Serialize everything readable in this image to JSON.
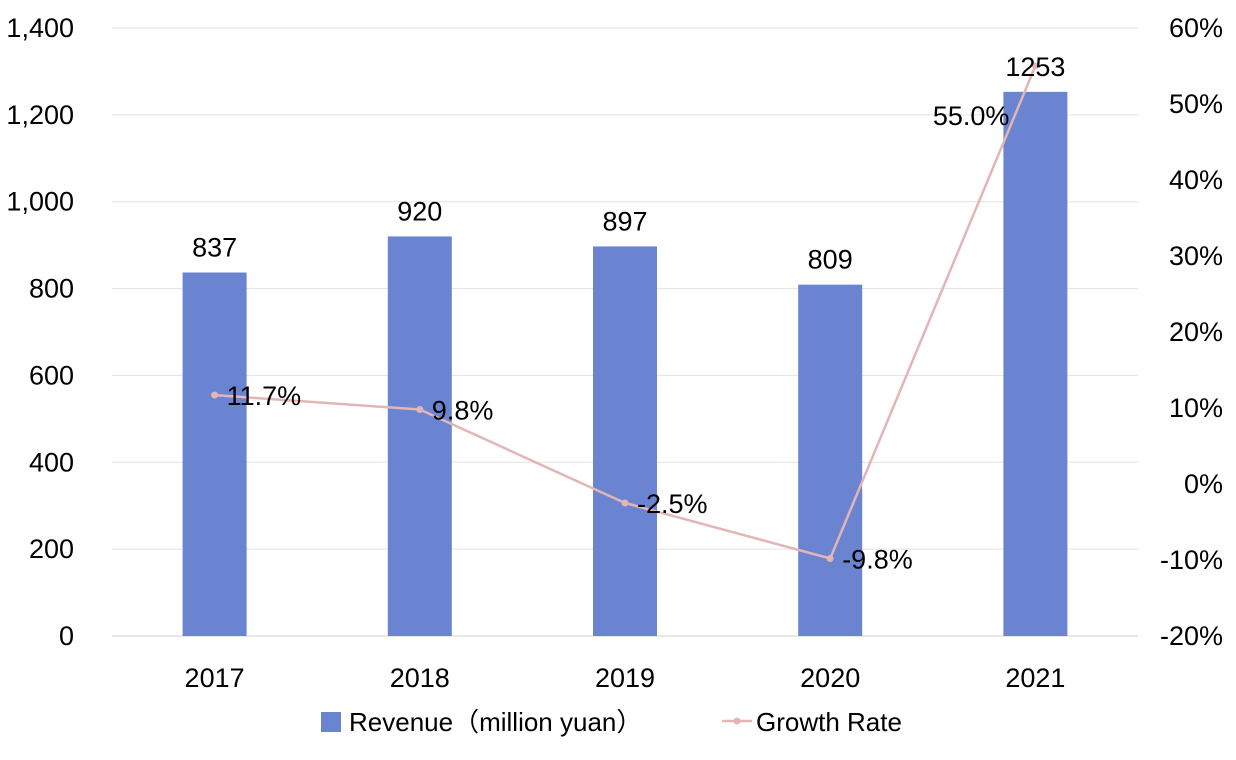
{
  "chart_data": {
    "type": "bar",
    "categories": [
      "2017",
      "2018",
      "2019",
      "2020",
      "2021"
    ],
    "series": [
      {
        "name": "Revenue（million yuan）",
        "type": "bar",
        "axis": "left",
        "values": [
          837,
          920,
          897,
          809,
          1253
        ],
        "labels": [
          "837",
          "920",
          "897",
          "809",
          "1253"
        ],
        "color": "#6A84D1"
      },
      {
        "name": "Growth Rate",
        "type": "line",
        "axis": "right",
        "values": [
          11.7,
          9.8,
          -2.5,
          -9.8,
          55.0
        ],
        "labels": [
          "11.7%",
          "9.8%",
          "-2.5%",
          "-9.8%",
          "55.0%"
        ],
        "color": "#E3B5B5"
      }
    ],
    "left_axis": {
      "ylim": [
        0,
        1400
      ],
      "ticks": [
        0,
        200,
        400,
        600,
        800,
        1000,
        1200,
        1400
      ],
      "tick_labels": [
        "0",
        "200",
        "400",
        "600",
        "800",
        "1,000",
        "1,200",
        "1,400"
      ]
    },
    "right_axis": {
      "ylim": [
        -20,
        60
      ],
      "ticks": [
        -20,
        -10,
        0,
        10,
        20,
        30,
        40,
        50,
        60
      ],
      "tick_labels": [
        "-20%",
        "-10%",
        "0%",
        "10%",
        "20%",
        "30%",
        "40%",
        "50%",
        "60%"
      ]
    },
    "grid": true,
    "legend": "bottom",
    "title": "",
    "xlabel": "",
    "ylabel": ""
  }
}
